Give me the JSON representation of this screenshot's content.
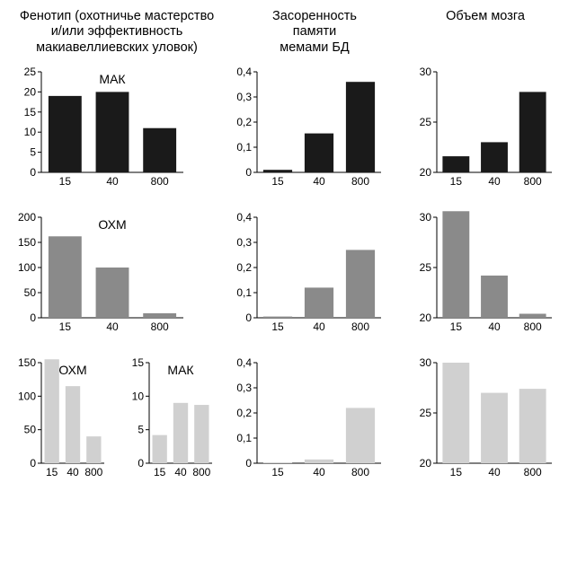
{
  "background_color": "#ffffff",
  "axis_color": "#000000",
  "colors": {
    "black": "#1a1a1a",
    "gray": "#8a8a8a",
    "light": "#d0d0d0"
  },
  "label_fontsize": 12,
  "title_fontsize": 14.5,
  "panel_label_fontsize": 14,
  "columns": {
    "c1": "Фенотип (охотничье мастерство\nи/или эффективность\nмакиавеллиевских уловок)",
    "c2": "Засоренность\nпамяти\nмемами БД",
    "c3": "Объем мозга"
  },
  "x_categories": [
    "15",
    "40",
    "800"
  ],
  "bar_width": 0.7,
  "rows": [
    {
      "color": "black",
      "c1": {
        "type": "bar",
        "panel_label": "МАК",
        "ylim": [
          0,
          25
        ],
        "ytick_step": 5,
        "values": [
          19,
          20,
          11
        ]
      },
      "c2": {
        "type": "bar",
        "ylim": [
          0,
          0.4
        ],
        "ytick_step": 0.1,
        "values": [
          0.01,
          0.155,
          0.36
        ]
      },
      "c3": {
        "type": "bar",
        "ylim": [
          20,
          30
        ],
        "ytick_step": 5,
        "values": [
          21.6,
          23.0,
          28.0
        ]
      }
    },
    {
      "color": "gray",
      "c1": {
        "type": "bar",
        "panel_label": "ОХМ",
        "ylim": [
          0,
          200
        ],
        "ytick_step": 50,
        "values": [
          162,
          100,
          9
        ]
      },
      "c2": {
        "type": "bar",
        "ylim": [
          0,
          0.4
        ],
        "ytick_step": 0.1,
        "values": [
          0.005,
          0.12,
          0.27
        ]
      },
      "c3": {
        "type": "bar",
        "ylim": [
          20,
          30
        ],
        "ytick_step": 5,
        "values": [
          30.6,
          24.2,
          20.4
        ]
      }
    },
    {
      "color": "light",
      "c1a": {
        "type": "bar",
        "panel_label": "ОХМ",
        "ylim": [
          0,
          150
        ],
        "ytick_step": 50,
        "values": [
          155,
          115,
          40
        ]
      },
      "c1b": {
        "type": "bar",
        "panel_label": "МАК",
        "ylim": [
          0,
          15
        ],
        "ytick_step": 5,
        "values": [
          4.2,
          9.0,
          8.7
        ]
      },
      "c2": {
        "type": "bar",
        "ylim": [
          0,
          0.4
        ],
        "ytick_step": 0.1,
        "values": [
          0.003,
          0.015,
          0.22
        ]
      },
      "c3": {
        "type": "bar",
        "ylim": [
          20,
          30
        ],
        "ytick_step": 5,
        "values": [
          30.0,
          27.0,
          27.4
        ]
      }
    }
  ]
}
